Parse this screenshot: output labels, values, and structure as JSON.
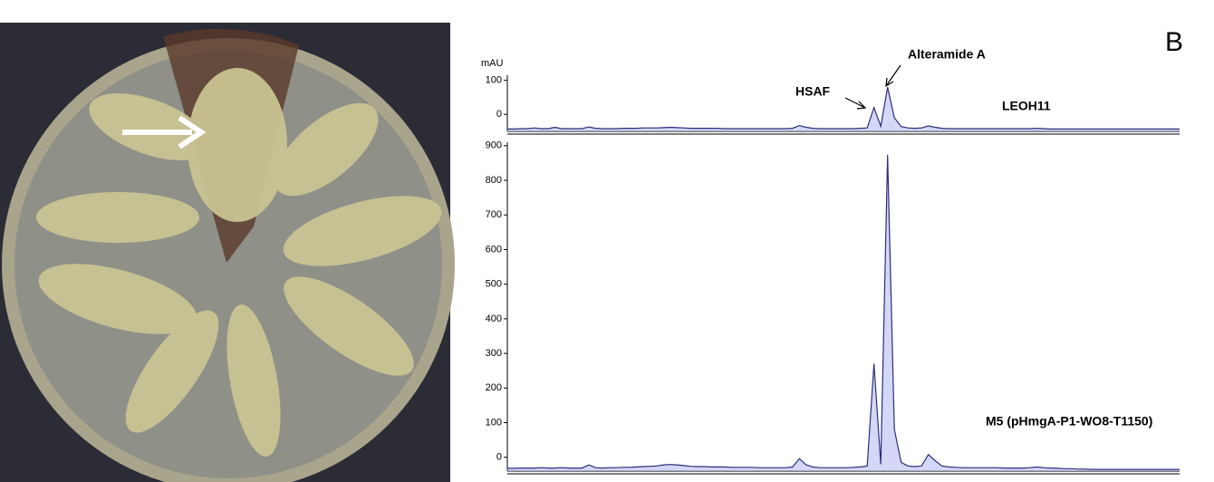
{
  "panel_label": "B",
  "chart_data": [
    {
      "type": "line",
      "y_label": "mAU",
      "annotations": [
        "HSAF",
        "Alteramide A"
      ],
      "ylim": [
        -50,
        115
      ],
      "yticks": [
        0,
        100
      ],
      "series": [
        {
          "name": "LEOH11",
          "color": "#2b2f7a",
          "values": [
            -43,
            -43,
            -42,
            -42,
            -40,
            -42,
            -42,
            -38,
            -42,
            -42,
            -42,
            -42,
            -37,
            -41,
            -42,
            -42,
            -42,
            -41,
            -41,
            -41,
            -40,
            -40,
            -40,
            -39,
            -38,
            -39,
            -40,
            -41,
            -41,
            -41,
            -41,
            -41,
            -42,
            -42,
            -42,
            -42,
            -42,
            -42,
            -42,
            -42,
            -42,
            -42,
            -41,
            -33,
            -38,
            -41,
            -42,
            -42,
            -42,
            -42,
            -42,
            -42,
            -41,
            -40,
            20,
            -35,
            80,
            -10,
            -36,
            -40,
            -41,
            -40,
            -34,
            -38,
            -41,
            -42,
            -42,
            -42,
            -42,
            -42,
            -42,
            -42,
            -42,
            -42,
            -42,
            -42,
            -42,
            -42,
            -41,
            -42,
            -43,
            -43,
            -43,
            -43,
            -43,
            -43,
            -43,
            -43,
            -43,
            -43,
            -43,
            -43,
            -43,
            -43,
            -43,
            -43,
            -43,
            -43,
            -43,
            -43
          ]
        }
      ]
    },
    {
      "type": "line",
      "ylim": [
        -40,
        910
      ],
      "yticks": [
        0,
        100,
        200,
        300,
        400,
        500,
        600,
        700,
        800,
        900
      ],
      "series": [
        {
          "name": "M5 (pHmgA-P1-WO8-T1150)",
          "color": "#2b2f7a",
          "values": [
            -32,
            -32,
            -31,
            -31,
            -31,
            -30,
            -31,
            -31,
            -30,
            -31,
            -31,
            -31,
            -22,
            -30,
            -31,
            -30,
            -30,
            -29,
            -29,
            -28,
            -27,
            -26,
            -25,
            -22,
            -21,
            -22,
            -24,
            -26,
            -27,
            -27,
            -28,
            -28,
            -28,
            -29,
            -29,
            -29,
            -29,
            -30,
            -30,
            -30,
            -30,
            -30,
            -28,
            -4,
            -22,
            -28,
            -30,
            -30,
            -30,
            -30,
            -30,
            -29,
            -28,
            -25,
            270,
            -20,
            874,
            80,
            -15,
            -25,
            -27,
            -25,
            8,
            -10,
            -25,
            -28,
            -29,
            -30,
            -30,
            -30,
            -30,
            -30,
            -30,
            -31,
            -31,
            -31,
            -31,
            -30,
            -28,
            -30,
            -31,
            -32,
            -33,
            -33,
            -34,
            -34,
            -35,
            -35,
            -35,
            -35,
            -35,
            -35,
            -35,
            -35,
            -35,
            -35,
            -35,
            -35,
            -35,
            -35
          ]
        }
      ]
    }
  ]
}
